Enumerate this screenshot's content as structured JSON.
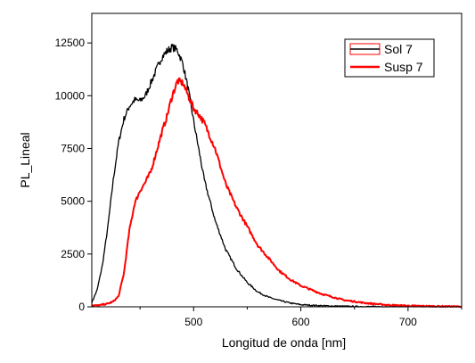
{
  "chart_data": {
    "type": "line",
    "title": "",
    "xlabel": "Longitud de onda [nm]",
    "ylabel": "PL_Lineal",
    "xlim": [
      405,
      750
    ],
    "ylim": [
      0,
      13900
    ],
    "x_ticks": [
      500,
      600,
      700
    ],
    "y_ticks": [
      0,
      2500,
      5000,
      7500,
      10000,
      12500
    ],
    "y_tick_labels": [
      "0",
      "2500",
      "5000",
      "7500",
      "10000",
      "12500"
    ],
    "x_tick_labels": [
      "500",
      "600",
      "700"
    ],
    "grid": false,
    "legend_position": "top-right",
    "legend": [
      {
        "label": "Sol 7",
        "color": "#000000"
      },
      {
        "label": "Susp 7",
        "color": "#ff0000"
      }
    ],
    "series": [
      {
        "name": "Sol 7",
        "color": "#000000",
        "x": [
          405,
          410,
          415,
          420,
          425,
          430,
          435,
          440,
          445,
          450,
          455,
          460,
          465,
          470,
          475,
          480,
          485,
          490,
          495,
          500,
          505,
          510,
          520,
          530,
          540,
          550,
          560,
          570,
          580,
          590,
          600,
          620,
          640,
          660,
          680,
          700,
          720,
          750
        ],
        "y": [
          200,
          800,
          2000,
          3800,
          6000,
          7800,
          8900,
          9500,
          9800,
          9750,
          10000,
          10600,
          11200,
          11800,
          12100,
          12300,
          12150,
          11500,
          10300,
          8800,
          7400,
          6000,
          4100,
          2700,
          1800,
          1150,
          700,
          450,
          300,
          180,
          100,
          50,
          25,
          10,
          5,
          3,
          2,
          0
        ]
      },
      {
        "name": "Susp 7",
        "color": "#ff0000",
        "x": [
          405,
          410,
          415,
          420,
          425,
          430,
          435,
          440,
          445,
          450,
          455,
          460,
          465,
          470,
          475,
          480,
          485,
          490,
          495,
          500,
          505,
          510,
          520,
          530,
          540,
          550,
          560,
          570,
          580,
          590,
          600,
          620,
          640,
          660,
          680,
          700,
          720,
          750
        ],
        "y": [
          80,
          60,
          100,
          150,
          250,
          500,
          1600,
          3600,
          4900,
          5500,
          5900,
          6400,
          7300,
          8200,
          9000,
          10000,
          10700,
          10600,
          10000,
          9400,
          9100,
          8700,
          7500,
          5800,
          4700,
          3800,
          2900,
          2300,
          1700,
          1300,
          1000,
          600,
          320,
          180,
          90,
          50,
          30,
          10
        ]
      }
    ]
  }
}
